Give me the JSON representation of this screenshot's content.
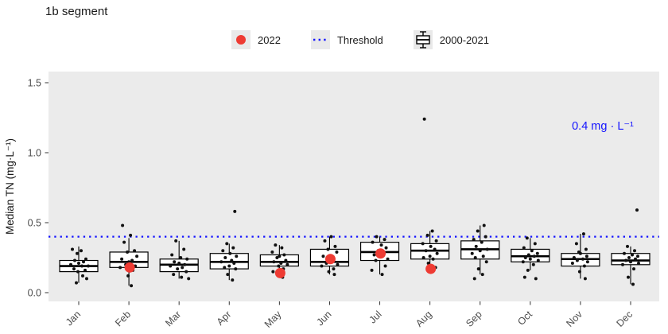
{
  "chart_data": {
    "type": "boxplot",
    "title": "1b segment",
    "ylabel": "Median TN (mg·L⁻¹)",
    "xlabel": "",
    "yticks": [
      0.0,
      0.5,
      1.0,
      1.5
    ],
    "ytick_labels": [
      "0.0",
      "0.5",
      "1.0",
      "1.5"
    ],
    "ylim": [
      -0.06,
      1.58
    ],
    "grid": "off",
    "legend_position": "top",
    "panel_bg": "#ebebeb",
    "categories": [
      "Jan",
      "Feb",
      "Mar",
      "Apr",
      "May",
      "Jun",
      "Jul",
      "Aug",
      "Sep",
      "Oct",
      "Nov",
      "Dec"
    ],
    "legend": {
      "items": [
        {
          "label": "2022",
          "glyph": "red-point",
          "color": "#ee3b33"
        },
        {
          "label": "Threshold",
          "glyph": "dotted-line",
          "color": "#1414ff"
        },
        {
          "label": "2000-2021",
          "glyph": "boxplot",
          "color": "#000000"
        }
      ]
    },
    "threshold": {
      "value": 0.4,
      "label": "0.4 mg · L⁻¹",
      "color": "#1414ff"
    },
    "boxes": [
      {
        "month": "Jan",
        "lo": 0.07,
        "q1": 0.15,
        "median": 0.19,
        "q3": 0.23,
        "hi": 0.33,
        "points": [
          [
            -8,
            0.31
          ],
          [
            3,
            0.3
          ],
          [
            -2,
            0.28
          ],
          [
            9,
            0.24
          ],
          [
            -5,
            0.23
          ],
          [
            6,
            0.22
          ],
          [
            0,
            0.21
          ],
          [
            -10,
            0.2
          ],
          [
            4,
            0.19
          ],
          [
            12,
            0.19
          ],
          [
            -6,
            0.17
          ],
          [
            8,
            0.16
          ],
          [
            -1,
            0.15
          ],
          [
            5,
            0.12
          ],
          [
            10,
            0.1
          ],
          [
            -3,
            0.07
          ]
        ]
      },
      {
        "month": "Feb",
        "lo": 0.05,
        "q1": 0.18,
        "median": 0.22,
        "q3": 0.29,
        "hi": 0.39,
        "points": [
          [
            -8,
            0.48
          ],
          [
            2,
            0.41
          ],
          [
            -6,
            0.36
          ],
          [
            7,
            0.3
          ],
          [
            -2,
            0.29
          ],
          [
            10,
            0.26
          ],
          [
            -9,
            0.24
          ],
          [
            4,
            0.23
          ],
          [
            0,
            0.22
          ],
          [
            -4,
            0.2
          ],
          [
            8,
            0.19
          ],
          [
            -11,
            0.18
          ],
          [
            5,
            0.16
          ],
          [
            -1,
            0.12
          ],
          [
            3,
            0.05
          ]
        ]
      },
      {
        "month": "Mar",
        "lo": 0.1,
        "q1": 0.15,
        "median": 0.2,
        "q3": 0.24,
        "hi": 0.37,
        "points": [
          [
            -4,
            0.37
          ],
          [
            6,
            0.31
          ],
          [
            -9,
            0.27
          ],
          [
            2,
            0.25
          ],
          [
            10,
            0.24
          ],
          [
            -6,
            0.22
          ],
          [
            0,
            0.21
          ],
          [
            7,
            0.2
          ],
          [
            -11,
            0.19
          ],
          [
            4,
            0.18
          ],
          [
            -2,
            0.17
          ],
          [
            9,
            0.15
          ],
          [
            -7,
            0.13
          ],
          [
            3,
            0.11
          ],
          [
            12,
            0.1
          ]
        ]
      },
      {
        "month": "Apr",
        "lo": 0.09,
        "q1": 0.17,
        "median": 0.22,
        "q3": 0.28,
        "hi": 0.35,
        "points": [
          [
            7,
            0.58
          ],
          [
            -3,
            0.35
          ],
          [
            5,
            0.32
          ],
          [
            -8,
            0.3
          ],
          [
            1,
            0.28
          ],
          [
            9,
            0.26
          ],
          [
            -5,
            0.25
          ],
          [
            3,
            0.23
          ],
          [
            -10,
            0.22
          ],
          [
            6,
            0.21
          ],
          [
            0,
            0.19
          ],
          [
            -6,
            0.18
          ],
          [
            8,
            0.17
          ],
          [
            -2,
            0.13
          ],
          [
            4,
            0.09
          ]
        ]
      },
      {
        "month": "May",
        "lo": 0.11,
        "q1": 0.19,
        "median": 0.22,
        "q3": 0.27,
        "hi": 0.34,
        "points": [
          [
            -5,
            0.34
          ],
          [
            3,
            0.32
          ],
          [
            -9,
            0.29
          ],
          [
            6,
            0.27
          ],
          [
            0,
            0.26
          ],
          [
            -3,
            0.25
          ],
          [
            8,
            0.23
          ],
          [
            -7,
            0.22
          ],
          [
            2,
            0.21
          ],
          [
            10,
            0.2
          ],
          [
            -1,
            0.19
          ],
          [
            5,
            0.17
          ],
          [
            -8,
            0.15
          ],
          [
            4,
            0.11
          ]
        ]
      },
      {
        "month": "Jun",
        "lo": 0.13,
        "q1": 0.19,
        "median": 0.22,
        "q3": 0.31,
        "hi": 0.4,
        "points": [
          [
            2,
            0.4
          ],
          [
            -6,
            0.37
          ],
          [
            7,
            0.33
          ],
          [
            -2,
            0.31
          ],
          [
            9,
            0.29
          ],
          [
            -8,
            0.26
          ],
          [
            4,
            0.24
          ],
          [
            0,
            0.22
          ],
          [
            -4,
            0.21
          ],
          [
            10,
            0.2
          ],
          [
            -10,
            0.19
          ],
          [
            5,
            0.17
          ],
          [
            -1,
            0.15
          ],
          [
            6,
            0.13
          ]
        ]
      },
      {
        "month": "Jul",
        "lo": 0.13,
        "q1": 0.23,
        "median": 0.29,
        "q3": 0.36,
        "hi": 0.4,
        "points": [
          [
            -4,
            0.4
          ],
          [
            6,
            0.38
          ],
          [
            -9,
            0.36
          ],
          [
            2,
            0.34
          ],
          [
            8,
            0.32
          ],
          [
            -2,
            0.3
          ],
          [
            4,
            0.29
          ],
          [
            -7,
            0.27
          ],
          [
            0,
            0.26
          ],
          [
            10,
            0.24
          ],
          [
            -5,
            0.23
          ],
          [
            7,
            0.19
          ],
          [
            -10,
            0.16
          ],
          [
            3,
            0.13
          ]
        ]
      },
      {
        "month": "Aug",
        "lo": 0.17,
        "q1": 0.24,
        "median": 0.3,
        "q3": 0.35,
        "hi": 0.44,
        "points": [
          [
            -7,
            1.24
          ],
          [
            3,
            0.44
          ],
          [
            -3,
            0.41
          ],
          [
            8,
            0.37
          ],
          [
            -9,
            0.35
          ],
          [
            1,
            0.33
          ],
          [
            6,
            0.31
          ],
          [
            -5,
            0.3
          ],
          [
            9,
            0.28
          ],
          [
            0,
            0.26
          ],
          [
            -8,
            0.25
          ],
          [
            4,
            0.24
          ],
          [
            -2,
            0.21
          ],
          [
            7,
            0.18
          ]
        ]
      },
      {
        "month": "Sep",
        "lo": 0.13,
        "q1": 0.24,
        "median": 0.31,
        "q3": 0.37,
        "hi": 0.48,
        "points": [
          [
            5,
            0.48
          ],
          [
            -3,
            0.44
          ],
          [
            7,
            0.4
          ],
          [
            -8,
            0.38
          ],
          [
            2,
            0.36
          ],
          [
            -5,
            0.33
          ],
          [
            9,
            0.31
          ],
          [
            0,
            0.3
          ],
          [
            -10,
            0.28
          ],
          [
            4,
            0.26
          ],
          [
            -6,
            0.25
          ],
          [
            8,
            0.22
          ],
          [
            -2,
            0.17
          ],
          [
            3,
            0.13
          ],
          [
            -7,
            0.1
          ]
        ]
      },
      {
        "month": "Oct",
        "lo": 0.16,
        "q1": 0.22,
        "median": 0.26,
        "q3": 0.31,
        "hi": 0.39,
        "points": [
          [
            -4,
            0.39
          ],
          [
            6,
            0.35
          ],
          [
            -8,
            0.32
          ],
          [
            2,
            0.3
          ],
          [
            9,
            0.28
          ],
          [
            -2,
            0.27
          ],
          [
            5,
            0.26
          ],
          [
            -6,
            0.25
          ],
          [
            0,
            0.24
          ],
          [
            10,
            0.23
          ],
          [
            -9,
            0.22
          ],
          [
            4,
            0.2
          ],
          [
            -3,
            0.16
          ],
          [
            -7,
            0.11
          ],
          [
            7,
            0.1
          ]
        ]
      },
      {
        "month": "Nov",
        "lo": 0.1,
        "q1": 0.19,
        "median": 0.24,
        "q3": 0.28,
        "hi": 0.42,
        "points": [
          [
            4,
            0.42
          ],
          [
            -5,
            0.35
          ],
          [
            7,
            0.31
          ],
          [
            -2,
            0.29
          ],
          [
            0,
            0.28
          ],
          [
            8,
            0.26
          ],
          [
            -8,
            0.25
          ],
          [
            3,
            0.24
          ],
          [
            -4,
            0.23
          ],
          [
            9,
            0.22
          ],
          [
            -10,
            0.21
          ],
          [
            5,
            0.19
          ],
          [
            -1,
            0.15
          ],
          [
            6,
            0.1
          ]
        ]
      },
      {
        "month": "Dec",
        "lo": 0.06,
        "q1": 0.2,
        "median": 0.23,
        "q3": 0.28,
        "hi": 0.33,
        "points": [
          [
            8,
            0.59
          ],
          [
            -4,
            0.33
          ],
          [
            5,
            0.3
          ],
          [
            -8,
            0.28
          ],
          [
            2,
            0.27
          ],
          [
            9,
            0.26
          ],
          [
            -2,
            0.25
          ],
          [
            6,
            0.24
          ],
          [
            -6,
            0.23
          ],
          [
            0,
            0.22
          ],
          [
            10,
            0.21
          ],
          [
            -10,
            0.2
          ],
          [
            4,
            0.17
          ],
          [
            -3,
            0.11
          ],
          [
            3,
            0.06
          ]
        ]
      }
    ],
    "points_2022": [
      {
        "month": "Feb",
        "value": 0.18
      },
      {
        "month": "May",
        "value": 0.14
      },
      {
        "month": "Jun",
        "value": 0.24
      },
      {
        "month": "Jul",
        "value": 0.28
      },
      {
        "month": "Aug",
        "value": 0.17
      }
    ]
  },
  "colors": {
    "point_2022": "#ee3b33",
    "threshold_blue": "#1414ff",
    "axis_text": "#4d4d4d",
    "panel_bg": "#ebebeb",
    "box_stroke": "#000000",
    "jitter_point": "#111111"
  }
}
